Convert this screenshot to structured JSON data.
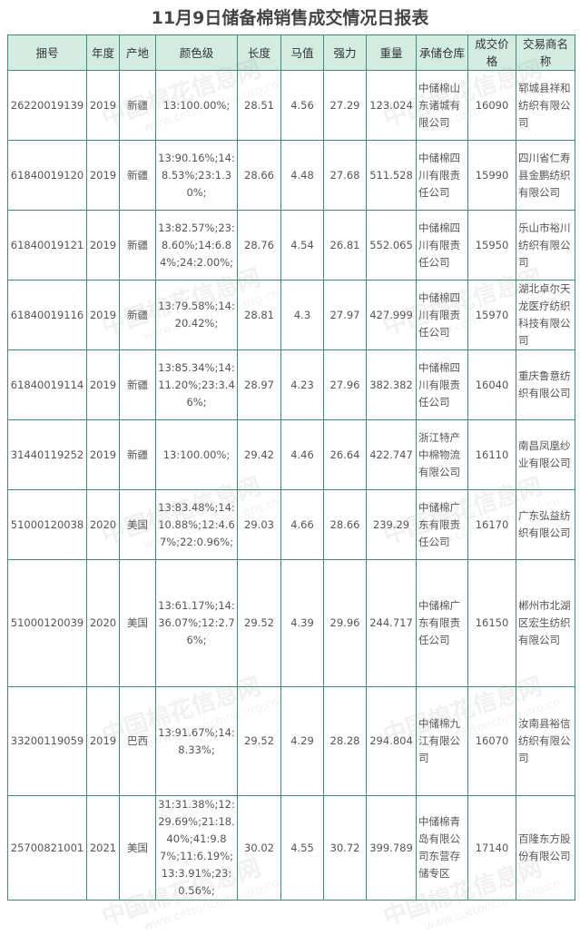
{
  "title": "11月9日储备棉销售成交情况日报表",
  "watermark": {
    "name": "中国棉花信息网",
    "url": "www.cottonchina.org.cn"
  },
  "colors": {
    "border": "#3f8a78",
    "header_bg": "#d3ece2"
  },
  "table": {
    "headers": [
      "捆号",
      "年度",
      "产地",
      "颜色级",
      "长度",
      "马值",
      "强力",
      "重量",
      "承储仓库",
      "成交价格",
      "交易商名称"
    ],
    "rows": [
      [
        "26220019139",
        "2019",
        "新疆",
        "13:100.00%;",
        "28.51",
        "4.56",
        "27.29",
        "123.024",
        "中储棉山东诸城有限公司",
        "16090",
        "郓城县祥和纺织有限公司"
      ],
      [
        "61840019120",
        "2019",
        "新疆",
        "13:90.16%;14:8.53%;23:1.30%;",
        "28.66",
        "4.48",
        "27.68",
        "511.528",
        "中储棉四川有限责任公司",
        "15990",
        "四川省仁寿县金鹏纺织有限公司"
      ],
      [
        "61840019121",
        "2019",
        "新疆",
        "13:82.57%;23:8.60%;14:6.84%;24:2.00%;",
        "28.76",
        "4.54",
        "26.81",
        "552.065",
        "中储棉四川有限责任公司",
        "15950",
        "乐山市裕川纺织有限公司"
      ],
      [
        "61840019116",
        "2019",
        "新疆",
        "13:79.58%;14:20.42%;",
        "28.81",
        "4.3",
        "27.97",
        "427.999",
        "中储棉四川有限责任公司",
        "15970",
        "湖北卓尔天龙医疗纺织科技有限公司"
      ],
      [
        "61840019114",
        "2019",
        "新疆",
        "13:85.34%;14:11.20%;23:3.46%;",
        "28.97",
        "4.23",
        "27.96",
        "382.382",
        "中储棉四川有限责任公司",
        "16040",
        "重庆鲁意纺织有限公司"
      ],
      [
        "31440119252",
        "2019",
        "新疆",
        "13:100.00%;",
        "29.42",
        "4.46",
        "26.64",
        "422.747",
        "浙江特产中棉物流有限公司",
        "16110",
        "南昌凤凰纱业有限公司"
      ],
      [
        "51000120038",
        "2020",
        "美国",
        "13:83.48%;14:10.88%;12:4.67%;22:0.96%;",
        "29.03",
        "4.66",
        "28.66",
        "239.29",
        "中储棉广东有限责任公司",
        "16170",
        "广东弘益纺织有限公司"
      ],
      [
        "51000120039",
        "2020",
        "美国",
        "13:61.17%;14:36.07%;12:2.76%;",
        "29.52",
        "4.39",
        "29.96",
        "244.717",
        "中储棉广东有限责任公司",
        "16150",
        "郴州市北湖区宏生纺织有限公司"
      ],
      [
        "33200119059",
        "2019",
        "巴西",
        "13:91.67%;14:8.33%;",
        "29.52",
        "4.29",
        "28.28",
        "294.804",
        "中储棉九江有限公司",
        "16070",
        "汝南县裕信纺织有限公司"
      ],
      [
        "25700821001",
        "2021",
        "美国",
        "31:31.38%;12:29.69%;21:18.40%;41:9.87%;11:6.19%;13:3.91%;23:0.56%;",
        "30.02",
        "4.55",
        "30.72",
        "399.789",
        "中储棉青岛有限公司东营存储专区",
        "17140",
        "百隆东方股份有限公司"
      ]
    ]
  }
}
